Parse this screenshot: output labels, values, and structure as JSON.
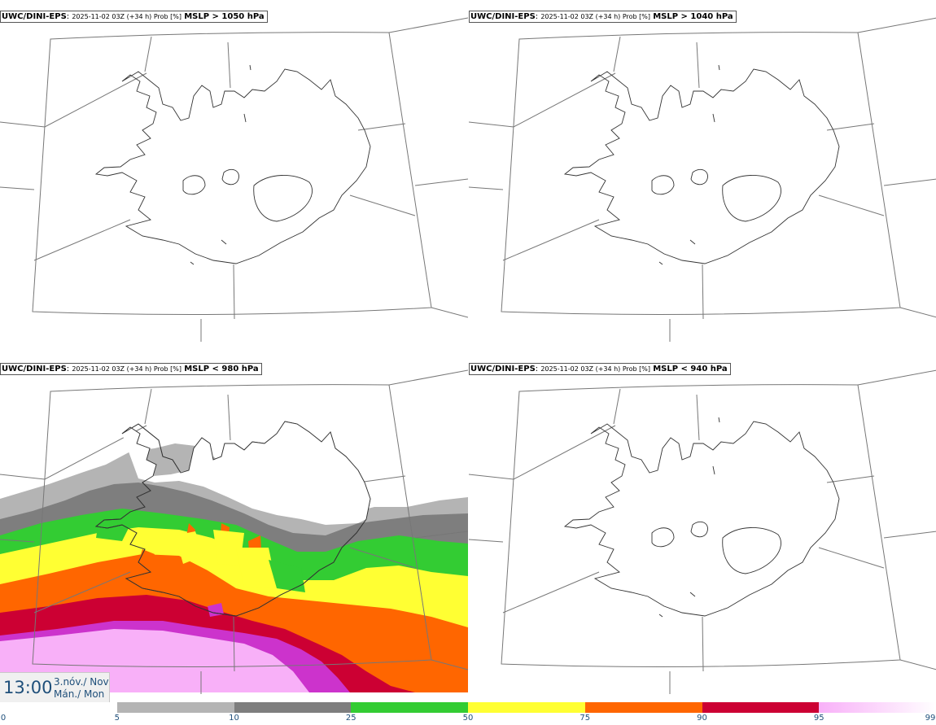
{
  "panels": [
    {
      "model": "UWC/DINI-EPS",
      "run": "2025-11-02 03Z (+34 h) Prob [%]",
      "threshold": "MSLP > 1050 hPa"
    },
    {
      "model": "UWC/DINI-EPS",
      "run": "2025-11-02 03Z (+34 h) Prob [%]",
      "threshold": "MSLP > 1040 hPa"
    },
    {
      "model": "UWC/DINI-EPS",
      "run": "2025-11-02 03Z (+34 h) Prob [%]",
      "threshold": "MSLP < 980 hPa"
    },
    {
      "model": "UWC/DINI-EPS",
      "run": "2025-11-02 03Z (+34 h) Prob [%]",
      "threshold": "MSLP < 940 hPa"
    }
  ],
  "valid_time": {
    "time": "13:00",
    "date_is": "3.nóv./ Nov",
    "day": "Mán./ Mon"
  },
  "colorbar": {
    "ticks": [
      "0",
      "5",
      "10",
      "25",
      "50",
      "75",
      "90",
      "95",
      "99"
    ],
    "colors": [
      "#ffffff",
      "#b4b4b4",
      "#7e7e7e",
      "#33cc33",
      "#ffff33",
      "#ff6600",
      "#cc0033",
      "#cc33cc",
      "#f8b0f8"
    ]
  },
  "region": "Iceland"
}
